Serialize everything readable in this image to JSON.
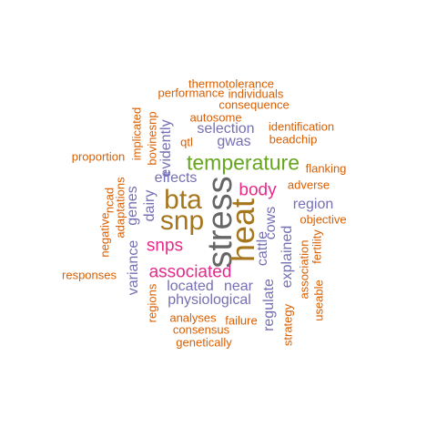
{
  "colors": {
    "orange": "#d95f02",
    "purple": "#7570b3",
    "pink": "#e7298a",
    "green": "#66a61e",
    "brown": "#a6761d",
    "gray": "#666666"
  },
  "words": {
    "stress": "stress",
    "heat": "heat",
    "bta": "bta",
    "snp": "snp",
    "temperature": "temperature",
    "associated": "associated",
    "snps": "snps",
    "body": "body",
    "region": "region",
    "selection": "selection",
    "gwas": "gwas",
    "effects": "effects",
    "located": "located",
    "near": "near",
    "physiological": "physiological",
    "variance": "variance",
    "genes": "genes",
    "dairy": "dairy",
    "evidently": "evidently",
    "cows": "cows",
    "cattle": "cattle",
    "regulate": "regulate",
    "explained": "explained",
    "thermotolerance": "thermotolerance",
    "performance": "performance",
    "individuals": "individuals",
    "consequence": "consequence",
    "autosome": "autosome",
    "identification": "identification",
    "beadchip": "beadchip",
    "qtl": "qtl",
    "implicated": "implicated",
    "bovinesnp": "bovinesnp",
    "proportion": "proportion",
    "flanking": "flanking",
    "adverse": "adverse",
    "objective": "objective",
    "fertility": "fertility",
    "association": "association",
    "useable": "useable",
    "strategy": "strategy",
    "failure": "failure",
    "analyses": "analyses",
    "consensus": "consensus",
    "genetically": "genetically",
    "regions": "regions",
    "responses": "responses",
    "negative": "negative",
    "ncad": "ncad",
    "adaptations": "adaptations"
  }
}
